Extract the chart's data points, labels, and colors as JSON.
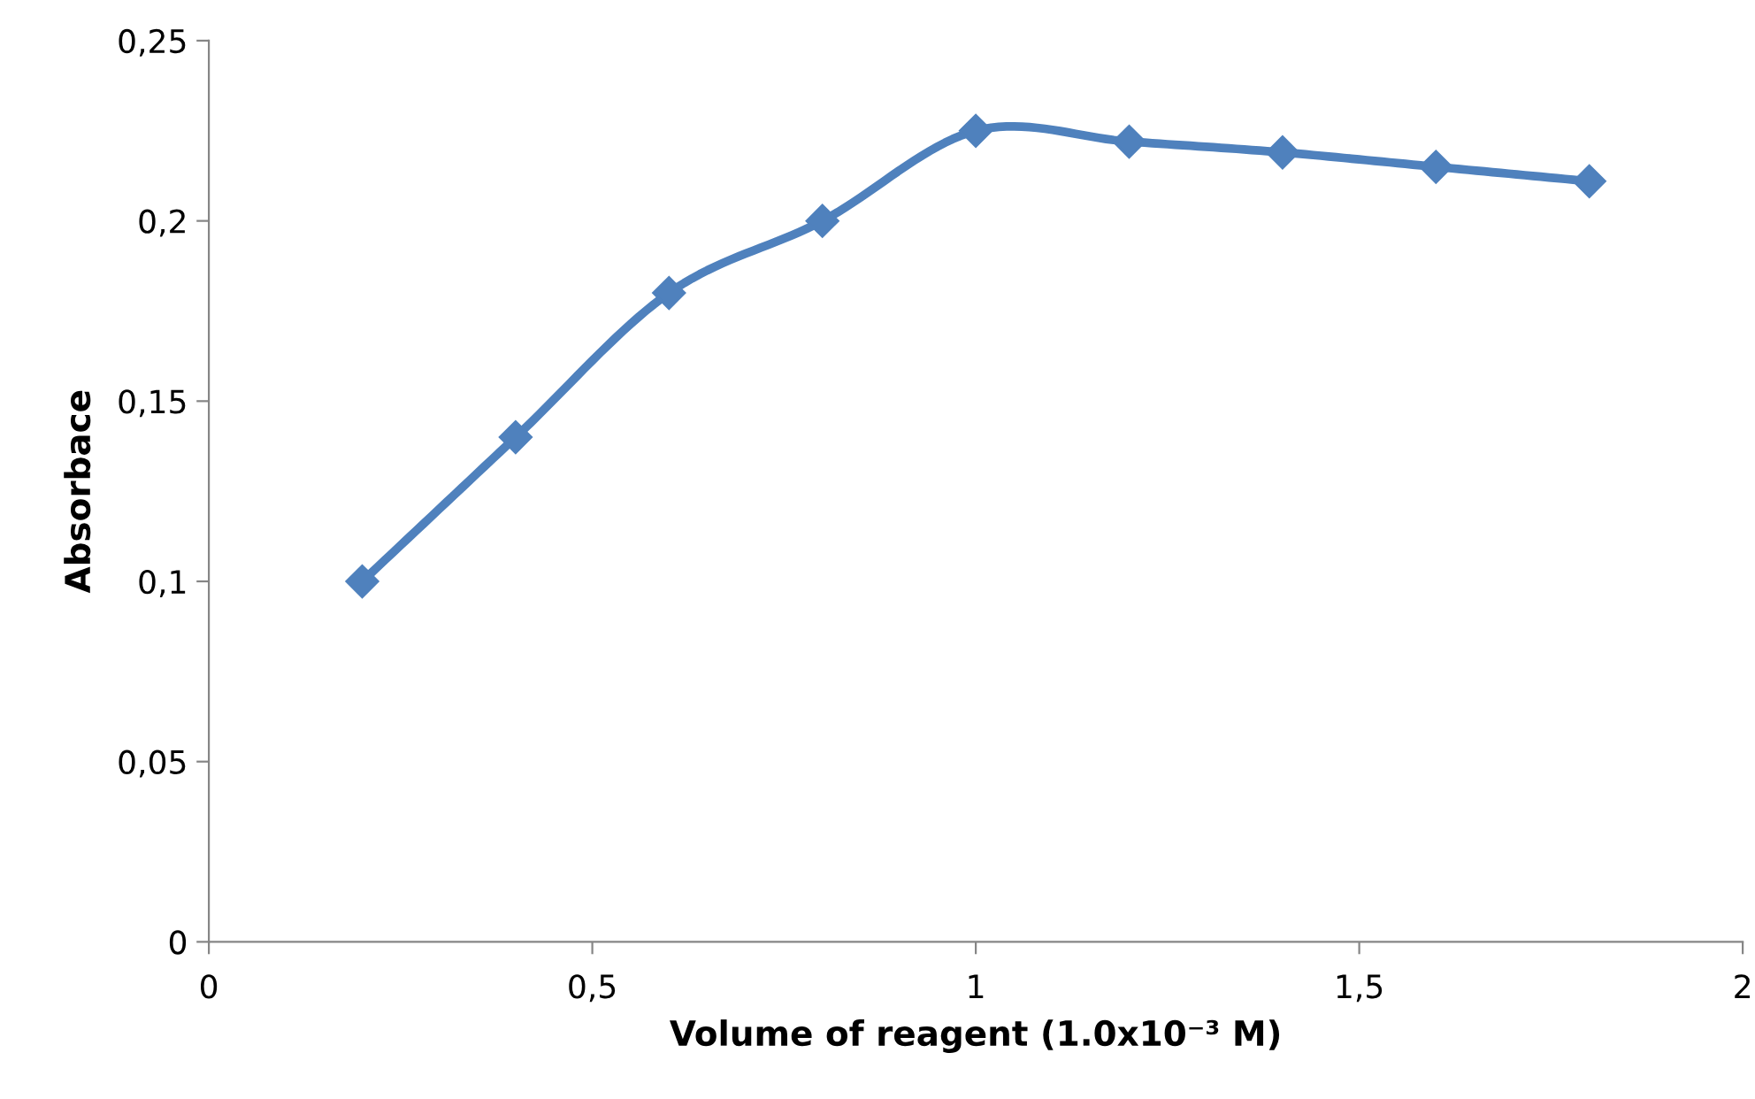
{
  "chart_data": {
    "type": "line",
    "xlabel": "Volume of reagent (1.0x10⁻³ M)",
    "ylabel": "Absorbace",
    "x": [
      0.2,
      0.4,
      0.6,
      0.8,
      1.0,
      1.2,
      1.4,
      1.6,
      1.8
    ],
    "series": [
      {
        "color": "#4f81bd",
        "values": [
          0.1,
          0.14,
          0.18,
          0.2,
          0.225,
          0.222,
          0.219,
          0.215,
          0.211
        ]
      }
    ],
    "marker": "diamond",
    "line_style": "solid",
    "grid": false,
    "legend": false,
    "xlim": [
      0,
      2
    ],
    "xticks": [
      0,
      {
        "value": 0.5,
        "label": "0,5"
      },
      1,
      {
        "value": 1.5,
        "label": "1,5"
      },
      2
    ],
    "ylim": [
      0,
      0.25
    ],
    "yticks": [
      0,
      {
        "value": 0.05,
        "label": "0,05"
      },
      {
        "value": 0.1,
        "label": "0,1"
      },
      {
        "value": 0.15,
        "label": "0,15"
      },
      {
        "value": 0.2,
        "label": "0,2"
      },
      {
        "value": 0.25,
        "label": "0,25"
      }
    ]
  }
}
